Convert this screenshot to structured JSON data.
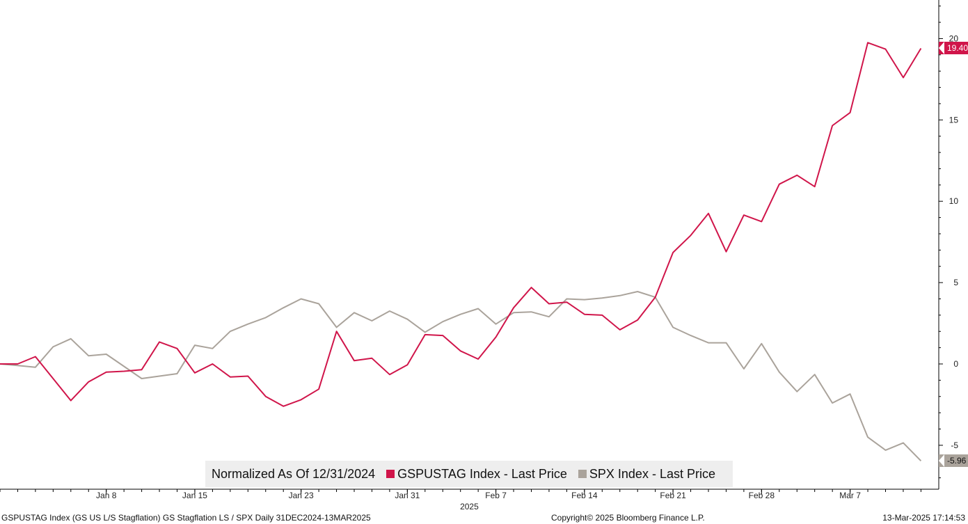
{
  "chart_data": {
    "type": "line",
    "title": "",
    "ylim": [
      -7.7,
      22.2
    ],
    "y_ticks": [
      20,
      15,
      10,
      5,
      0,
      -5
    ],
    "y_axis_position": "right",
    "x_tick_labels": [
      "Jan 8",
      "Jan 15",
      "Jan 23",
      "Jan 31",
      "Feb 7",
      "Feb 14",
      "Feb 21",
      "Feb 28",
      "Mar 7"
    ],
    "x_tick_indices": [
      6,
      11,
      17,
      23,
      28,
      33,
      38,
      43,
      48
    ],
    "year_label": "2025",
    "year_label_index": 26.5,
    "grid": false,
    "legend_position": "bottom-center",
    "series": [
      {
        "name": "GSPUSTAG Index - Last Price",
        "color": "#d0154a",
        "last_value_label": "19.40",
        "values": [
          0,
          0,
          0.45,
          -0.9,
          -2.25,
          -1.1,
          -0.5,
          -0.45,
          -0.35,
          1.35,
          0.95,
          -0.55,
          0,
          -0.8,
          -0.75,
          -2.0,
          -2.6,
          -2.2,
          -1.55,
          2.0,
          0.2,
          0.35,
          -0.65,
          -0.05,
          1.8,
          1.75,
          0.8,
          0.3,
          1.65,
          3.45,
          4.7,
          3.7,
          3.8,
          3.05,
          3.0,
          2.1,
          2.7,
          4.1,
          6.85,
          7.9,
          9.25,
          6.9,
          9.15,
          8.75,
          11.05,
          11.6,
          10.9,
          14.65,
          15.45,
          19.75,
          19.35,
          17.6,
          19.4
        ]
      },
      {
        "name": "SPX Index - Last Price",
        "color": "#aaa39b",
        "last_value_label": "-5.96",
        "values": [
          0,
          -0.1,
          -0.2,
          1.05,
          1.55,
          0.5,
          0.6,
          -0.15,
          -0.9,
          -0.75,
          -0.6,
          1.15,
          0.95,
          2.0,
          2.45,
          2.85,
          3.45,
          4.0,
          3.7,
          2.25,
          3.15,
          2.65,
          3.25,
          2.75,
          1.95,
          2.6,
          3.05,
          3.4,
          2.45,
          3.15,
          3.2,
          2.9,
          4.0,
          3.95,
          4.05,
          4.2,
          4.45,
          4.1,
          2.25,
          1.75,
          1.3,
          1.3,
          -0.3,
          1.25,
          -0.5,
          -1.7,
          -0.65,
          -2.4,
          -1.85,
          -4.5,
          -5.3,
          -4.85,
          -5.96
        ]
      }
    ]
  },
  "legend": {
    "prefix": "Normalized As Of 12/31/2024",
    "item1": "GSPUSTAG Index - Last Price",
    "item2": "SPX Index - Last Price"
  },
  "footer": {
    "left": "GSPUSTAG Index (GS US L/S Stagflation) GS Stagflation LS / SPX  Daily 31DEC2024-13MAR2025",
    "center": "Copyright© 2025 Bloomberg Finance L.P.",
    "right": "13-Mar-2025 17:14:53"
  }
}
